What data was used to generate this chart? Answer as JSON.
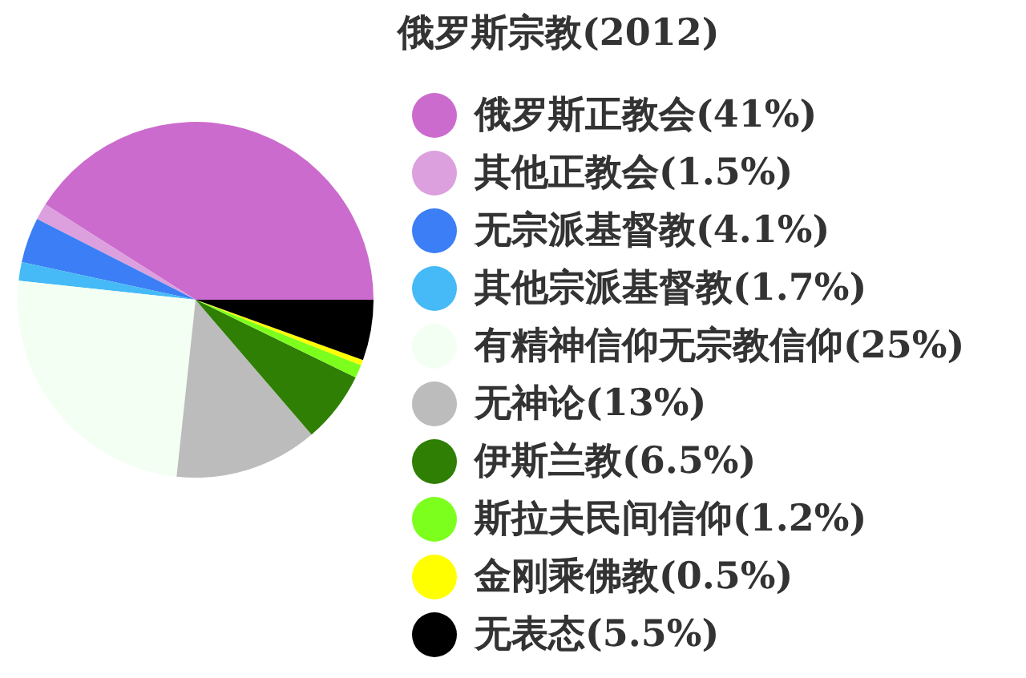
{
  "chart_data": {
    "type": "pie",
    "title": "俄罗斯宗教(2012)",
    "categories": [
      "俄罗斯正教会(41%)",
      "其他正教会(1.5%)",
      "无宗派基督教(4.1%)",
      "其他宗派基督教(1.7%)",
      "有精神信仰无宗教信仰(25%)",
      "无神论(13%)",
      "伊斯兰教(6.5%)",
      "斯拉夫民间信仰(1.2%)",
      "金刚乘佛教(0.5%)",
      "无表态(5.5%)"
    ],
    "values": [
      41,
      1.5,
      4.1,
      1.7,
      25,
      13,
      6.5,
      1.2,
      0.5,
      5.5
    ],
    "colors": [
      "#cc6bce",
      "#dba0dd",
      "#3b7ef5",
      "#45baf7",
      "#f2fff2",
      "#bcbcbc",
      "#2e7f03",
      "#7dff1e",
      "#ffff00",
      "#000000"
    ],
    "legend": "right"
  }
}
